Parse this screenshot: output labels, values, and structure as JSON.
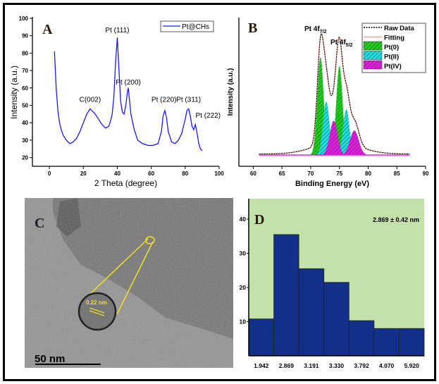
{
  "chart_data": [
    {
      "panel": "A",
      "type": "line",
      "xlabel": "2 Theta (degree)",
      "ylabel": "Intensity (a.u.)",
      "xlim": [
        -10,
        100
      ],
      "ylim": [
        15,
        100
      ],
      "xticks": [
        0,
        20,
        40,
        60,
        80,
        100
      ],
      "yticks": [
        20,
        30,
        40,
        50,
        60,
        70,
        80,
        90,
        100
      ],
      "grid": false,
      "legend": "top-right",
      "series": [
        {
          "name": "Pt@CHs",
          "color": "#1a1aff",
          "x": [
            3,
            4,
            5,
            6,
            7,
            8,
            10,
            12,
            14,
            16,
            18,
            20,
            22,
            24,
            25,
            27,
            29,
            31,
            33,
            35,
            36,
            37,
            38,
            39,
            40,
            41,
            42,
            43,
            44,
            45,
            46,
            46.5,
            47,
            48,
            50,
            52,
            55,
            58,
            61,
            64,
            66,
            67,
            68,
            69,
            70,
            72,
            74,
            76,
            78,
            80,
            81,
            82,
            83,
            84,
            85,
            86,
            87,
            88,
            89,
            90
          ],
          "y": [
            81,
            60,
            47,
            40,
            36,
            33,
            30,
            28,
            29,
            31,
            35,
            40,
            45,
            48,
            47,
            45,
            42,
            39,
            37,
            38,
            41,
            45,
            55,
            75,
            89,
            70,
            52,
            46,
            45,
            50,
            58,
            60,
            55,
            45,
            36,
            30,
            28,
            27,
            27,
            28,
            35,
            44,
            47,
            43,
            35,
            29,
            28,
            30,
            34,
            42,
            47,
            48,
            44,
            38,
            36,
            39,
            34,
            28,
            25,
            24
          ]
        }
      ],
      "annotations": [
        "C(002)",
        "Pt (111)",
        "Pt (200)",
        "Pt (220)",
        "Pt (311)",
        "Pt (222)"
      ]
    },
    {
      "panel": "B",
      "type": "area",
      "xlabel": "Binding Energy (eV)",
      "ylabel": "Intensity (a.u.)",
      "xlim": [
        57.5,
        90
      ],
      "xticks": [
        60,
        65,
        70,
        75,
        80,
        85,
        90
      ],
      "legend": "top-right",
      "annotations": [
        {
          "main": "Pt 4f",
          "sub": "7/2"
        },
        {
          "main": "Pt 4f",
          "sub": "5/2"
        }
      ],
      "series": [
        {
          "name": "Raw Data",
          "style": "dotted",
          "color": "#000000"
        },
        {
          "name": "Fitting",
          "color": "#f4a0a0"
        },
        {
          "name": "Pt(0)",
          "color": "#22cc22",
          "peaks": [
            {
              "center": 71.7,
              "height": 1.0,
              "fwhm": 1.3
            },
            {
              "center": 75.0,
              "height": 0.91,
              "fwhm": 1.3
            }
          ]
        },
        {
          "name": "Pt(II)",
          "color": "#22dddd",
          "peaks": [
            {
              "center": 72.7,
              "height": 0.55,
              "fwhm": 1.3
            },
            {
              "center": 76.2,
              "height": 0.47,
              "fwhm": 1.3
            }
          ]
        },
        {
          "name": "Pt(IV)",
          "color": "#dd22dd",
          "peaks": [
            {
              "center": 74.0,
              "height": 0.35,
              "fwhm": 1.6
            },
            {
              "center": 77.6,
              "height": 0.25,
              "fwhm": 1.8
            }
          ]
        }
      ]
    },
    {
      "panel": "D",
      "type": "bar",
      "categories": [
        "1.942",
        "2.869",
        "3.191",
        "3.330",
        "3.792",
        "4.070",
        "5.920"
      ],
      "values": [
        10.8,
        35.5,
        25.5,
        21.5,
        10.3,
        8,
        8
      ],
      "ylim": [
        0,
        46
      ],
      "yticks": [
        10,
        20,
        30,
        40
      ],
      "annotation": "2.869 ± 0.42 nm",
      "background": "#c2e2aa",
      "bar_color": "#12308a"
    }
  ],
  "panels": {
    "a": "A",
    "b": "B",
    "c": "C",
    "d": "D"
  },
  "tem": {
    "scale_bar": "50 nm",
    "lattice": "0.22 nm"
  }
}
